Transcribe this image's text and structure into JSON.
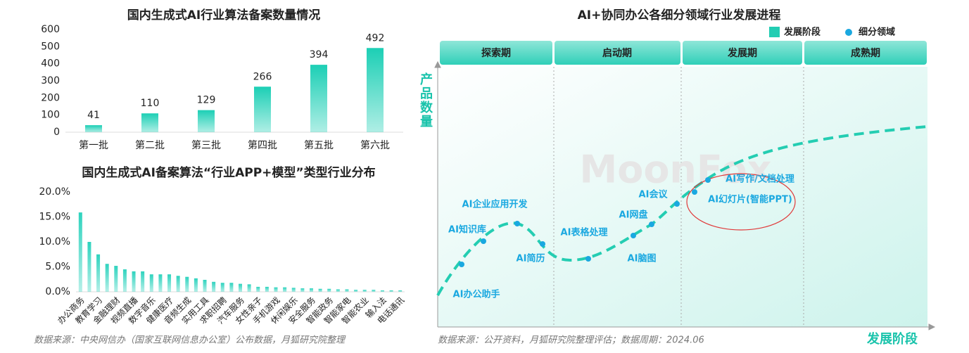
{
  "chart_data": [
    {
      "type": "bar",
      "title": "国内生成式AI行业算法备案数量情况",
      "categories": [
        "第一批",
        "第二批",
        "第三批",
        "第四批",
        "第五批",
        "第六批"
      ],
      "values": [
        41,
        110,
        129,
        266,
        394,
        492
      ],
      "color": "#1ccfb5",
      "data_labels": true,
      "ylim": [
        0,
        600
      ],
      "yticks": [
        0,
        100,
        200,
        300,
        400,
        500,
        600
      ]
    },
    {
      "type": "bar",
      "title": "国内生成式AI备案算法“行业APP+模型”类型行业分布",
      "categories": [
        "办公商务",
        null,
        "教育学习",
        null,
        "金融理财",
        null,
        "视频直播",
        null,
        "数字音乐",
        null,
        "健康医疗",
        null,
        "音频生成",
        null,
        "实用工具",
        null,
        "求职招聘",
        null,
        "汽车服务",
        null,
        "女性亲子",
        null,
        "手机游戏",
        null,
        "休闲娱乐",
        null,
        "安全服务",
        null,
        "智能政务",
        null,
        "智能家电",
        null,
        "智能农业",
        null,
        "输入法",
        null,
        "电话通讯"
      ],
      "values": [
        15.9,
        10.0,
        7.5,
        5.6,
        5.2,
        4.5,
        4.1,
        4.1,
        3.5,
        3.5,
        3.5,
        3.2,
        3.0,
        2.7,
        2.4,
        2.0,
        1.8,
        1.8,
        1.6,
        1.5,
        1.0,
        1.0,
        0.9,
        0.9,
        0.8,
        0.7,
        0.7,
        0.6,
        0.6,
        0.5,
        0.5,
        0.4,
        0.4,
        0.4,
        0.3,
        0.3,
        0.3
      ],
      "color": "#2ed3be",
      "data_labels": false,
      "ylim": [
        0,
        20
      ],
      "yticks": [
        {
          "value": 0,
          "label": "0.0%"
        },
        {
          "value": 5,
          "label": "5.0%"
        },
        {
          "value": 10,
          "label": "10.0%"
        },
        {
          "value": 15,
          "label": "15.0%"
        },
        {
          "value": 20,
          "label": "20.0%"
        }
      ]
    }
  ],
  "diagram": {
    "title": "AI+协同办公各细分领域行业发展进程",
    "legend": [
      "发展阶段",
      "细分领域"
    ],
    "stages": [
      "探索期",
      "启动期",
      "发展期",
      "成熟期"
    ],
    "y_axis_label": "产品数量",
    "x_axis_label": "发展阶段",
    "points": [
      "AI办公助手",
      "AI知识库",
      "AI企业应用开发",
      "AI简历",
      "AI表格处理",
      "AI脑图",
      "AI网盘",
      "AI会议",
      "AI写作/文档处理",
      "AI幻灯片(智能PPT)"
    ],
    "watermark": "MoonFox"
  },
  "sources": [
    "数据来源：中央网信办（国家互联网信息办公室）公布数据，月狐研究院整理",
    "数据来源：公开资料，月狐研究院整理评估；数据周期：2024.06"
  ]
}
